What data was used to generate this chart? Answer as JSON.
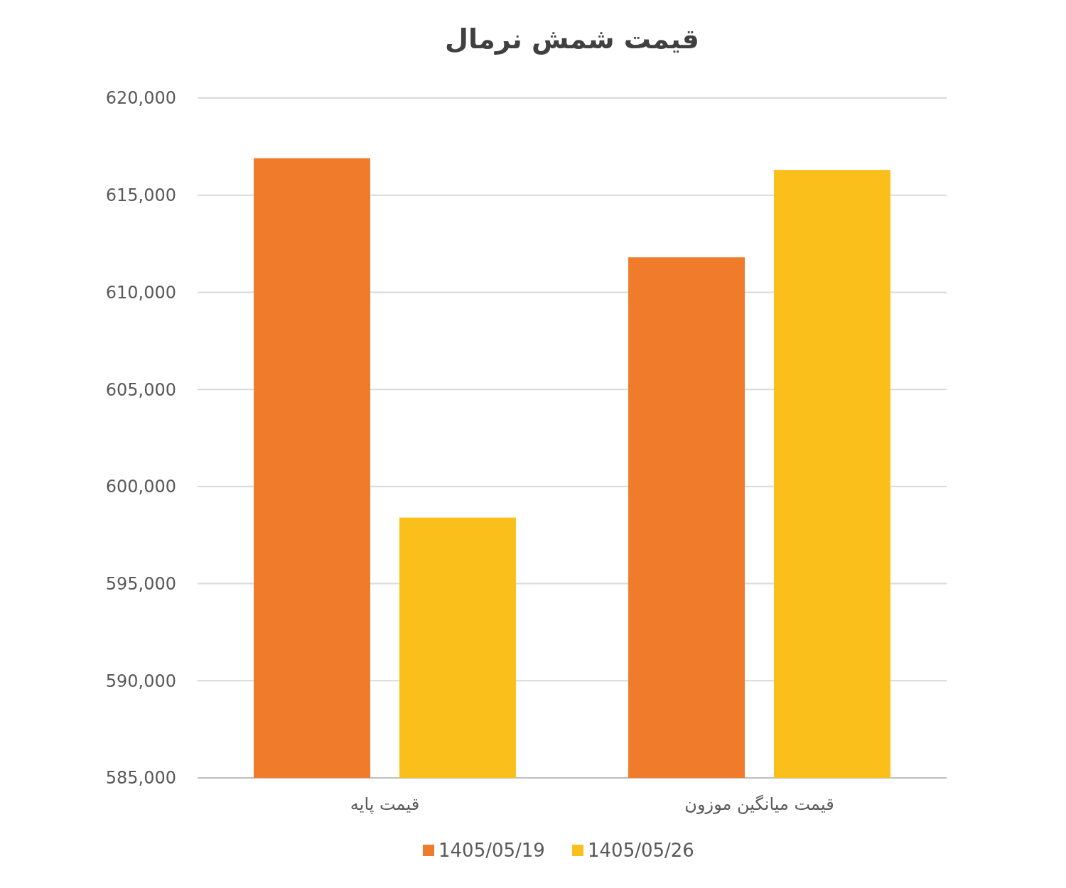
{
  "chart_data": {
    "type": "bar",
    "title": "قیمت شمش نرمال",
    "categories": [
      "قیمت پایه",
      "قیمت میانگین موزون"
    ],
    "series": [
      {
        "name": "1405/05/19",
        "color": "#f07b2b",
        "values": [
          616900,
          611800
        ]
      },
      {
        "name": "1405/05/26",
        "color": "#fbbf1c",
        "values": [
          598400,
          616300
        ]
      }
    ],
    "ylim": [
      585000,
      620000
    ],
    "yticks": [
      {
        "value": 585000,
        "label": "585,000"
      },
      {
        "value": 590000,
        "label": "590,000"
      },
      {
        "value": 595000,
        "label": "595,000"
      },
      {
        "value": 600000,
        "label": "600,000"
      },
      {
        "value": 605000,
        "label": "605,000"
      },
      {
        "value": 610000,
        "label": "610,000"
      },
      {
        "value": 615000,
        "label": "615,000"
      },
      {
        "value": 620000,
        "label": "620,000"
      }
    ],
    "grid": "y",
    "legend": "bottom"
  }
}
